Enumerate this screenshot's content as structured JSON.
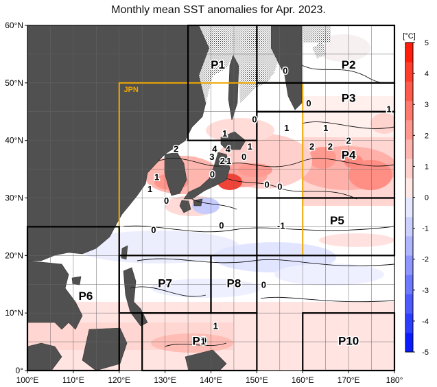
{
  "title": "Monthly mean SST anomalies for Apr. 2023.",
  "axes": {
    "lon_ticks": [
      "100°E",
      "110°E",
      "120°E",
      "130°E",
      "140°E",
      "150°E",
      "160°E",
      "170°E",
      "180°"
    ],
    "lat_ticks": [
      "0°",
      "10°N",
      "20°N",
      "30°N",
      "40°N",
      "50°N",
      "60°N"
    ]
  },
  "colorbar": {
    "unit": "[°C]",
    "ticks": [
      "-5",
      "-4",
      "-3",
      "-2",
      "-1",
      "0",
      "1",
      "2",
      "3",
      "4",
      "5"
    ],
    "colors": [
      "#0a1cff",
      "#2b3dff",
      "#4c5bff",
      "#6d79ff",
      "#8e97ff",
      "#afb5ff",
      "#ccd0ff",
      "#e6e8ff",
      "#ffe8e6",
      "#ffd0cc",
      "#ffb5af",
      "#ff978e",
      "#ff796d",
      "#ff5b4c",
      "#ff3d2b",
      "#ff1c0a"
    ]
  },
  "regions": [
    {
      "name": "JPN",
      "lon": [
        120,
        160
      ],
      "lat": [
        20,
        50
      ],
      "color": "#f0a800"
    },
    {
      "name": "P1",
      "lon": [
        135,
        150
      ],
      "lat": [
        40,
        60
      ],
      "color": "#000000"
    },
    {
      "name": "P2",
      "lon": [
        150,
        180
      ],
      "lat": [
        50,
        60
      ],
      "color": "#000000"
    },
    {
      "name": "P3",
      "lon": [
        150,
        180
      ],
      "lat": [
        45,
        50
      ],
      "color": "#000000"
    },
    {
      "name": "P4",
      "lon": [
        150,
        180
      ],
      "lat": [
        30,
        45
      ],
      "color": "#000000"
    },
    {
      "name": "P5",
      "lon": [
        150,
        180
      ],
      "lat": [
        20,
        30
      ],
      "color": "#000000"
    },
    {
      "name": "P6",
      "lon": [
        100,
        120
      ],
      "lat": [
        0,
        25
      ],
      "color": "#000000"
    },
    {
      "name": "P7",
      "lon": [
        120,
        140
      ],
      "lat": [
        10,
        20
      ],
      "color": "#000000"
    },
    {
      "name": "P8",
      "lon": [
        140,
        150
      ],
      "lat": [
        10,
        20
      ],
      "color": "#000000"
    },
    {
      "name": "P9",
      "lon": [
        125,
        150
      ],
      "lat": [
        0,
        10
      ],
      "color": "#000000"
    },
    {
      "name": "P10",
      "lon": [
        160,
        180
      ],
      "lat": [
        0,
        10
      ],
      "color": "#000000"
    }
  ],
  "contour_labels": [
    {
      "text": "0",
      "lon": 161.3,
      "lat": 46.5
    },
    {
      "text": "0",
      "lon": 149.5,
      "lat": 43.7
    },
    {
      "text": "1",
      "lon": 156.5,
      "lat": 42.2
    },
    {
      "text": "1",
      "lon": 165,
      "lat": 42.2
    },
    {
      "text": "2",
      "lon": 170,
      "lat": 40
    },
    {
      "text": "2",
      "lon": 162,
      "lat": 39
    },
    {
      "text": "2",
      "lon": 166,
      "lat": 39
    },
    {
      "text": "1",
      "lon": 143,
      "lat": 41.3
    },
    {
      "text": "1",
      "lon": 148.5,
      "lat": 39
    },
    {
      "text": "4",
      "lon": 140.8,
      "lat": 38.6
    },
    {
      "text": "4",
      "lon": 143.7,
      "lat": 38.5
    },
    {
      "text": "3",
      "lon": 140.2,
      "lat": 37.2
    },
    {
      "text": "2",
      "lon": 142.5,
      "lat": 36.5
    },
    {
      "text": "1",
      "lon": 143.9,
      "lat": 36.5
    },
    {
      "text": "0",
      "lon": 147.2,
      "lat": 37.2
    },
    {
      "text": "2",
      "lon": 132.4,
      "lat": 38.6
    },
    {
      "text": "1",
      "lon": 128.2,
      "lat": 33.7
    },
    {
      "text": "1",
      "lon": 126.7,
      "lat": 31.6
    },
    {
      "text": "0",
      "lon": 140.3,
      "lat": 34.2
    },
    {
      "text": "0",
      "lon": 152.2,
      "lat": 32.4
    },
    {
      "text": "0",
      "lon": 155,
      "lat": 32
    },
    {
      "text": "0",
      "lon": 130.3,
      "lat": 29.6
    },
    {
      "text": "0",
      "lon": 127.5,
      "lat": 24.5
    },
    {
      "text": "0",
      "lon": 142.3,
      "lat": 25.3
    },
    {
      "text": "-1",
      "lon": 155.3,
      "lat": 25.2
    },
    {
      "text": "0",
      "lon": 151.5,
      "lat": 15
    },
    {
      "text": "1",
      "lon": 141,
      "lat": 7.8
    },
    {
      "text": "0",
      "lon": 156.2,
      "lat": 52.2
    },
    {
      "text": "1",
      "lon": 178.8,
      "lat": 45.5
    },
    {
      "text": "1",
      "lon": 138.3,
      "lat": 5.1
    }
  ]
}
